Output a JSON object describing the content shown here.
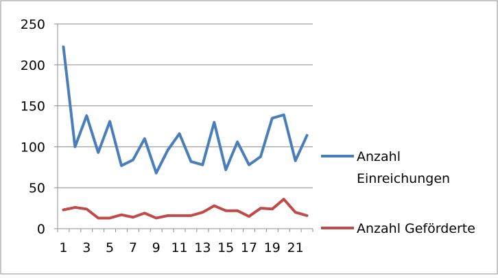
{
  "chart_data": {
    "type": "line",
    "title": "",
    "xlabel": "",
    "ylabel": "",
    "x": [
      1,
      2,
      3,
      4,
      5,
      6,
      7,
      8,
      9,
      10,
      11,
      12,
      13,
      14,
      15,
      16,
      17,
      18,
      19,
      20,
      21,
      22
    ],
    "x_tick_labels": [
      "1",
      "3",
      "5",
      "7",
      "9",
      "11",
      "13",
      "15",
      "17",
      "19",
      "21"
    ],
    "y_tick_labels": [
      "0",
      "50",
      "100",
      "150",
      "200",
      "250"
    ],
    "ylim": [
      0,
      250
    ],
    "grid": true,
    "legend_position": "right",
    "series": [
      {
        "name": "Anzahl Einreichungen",
        "legend_lines": [
          "Anzahl",
          "Einreichungen"
        ],
        "color": "#4a7ebb",
        "values": [
          222,
          100,
          138,
          93,
          131,
          77,
          84,
          110,
          68,
          96,
          116,
          82,
          78,
          130,
          72,
          106,
          78,
          88,
          135,
          139,
          83,
          114
        ]
      },
      {
        "name": "Anzahl Geförderte",
        "legend_lines": [
          "Anzahl Geförderte"
        ],
        "color": "#be4b48",
        "values": [
          23,
          26,
          24,
          13,
          13,
          17,
          14,
          19,
          13,
          16,
          16,
          16,
          20,
          28,
          22,
          22,
          15,
          25,
          24,
          36,
          20,
          16
        ]
      }
    ]
  }
}
